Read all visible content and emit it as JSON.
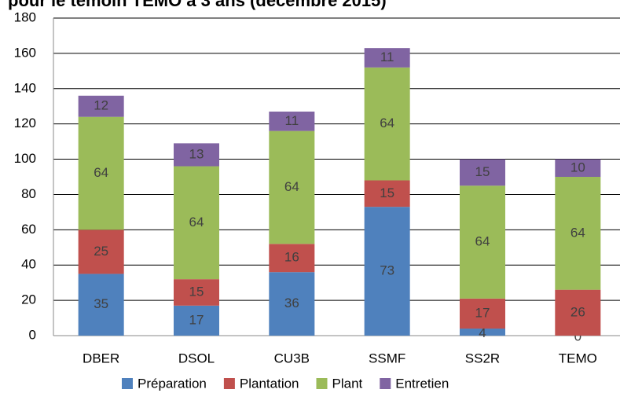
{
  "chart_data": {
    "type": "stacked_bar",
    "title": "pour le témoin TEMO à 3 ans (décembre 2015)",
    "categories": [
      "DBER",
      "DSOL",
      "CU3B",
      "SSMF",
      "SS2R",
      "TEMO"
    ],
    "series": [
      {
        "name": "Préparation",
        "color": "#4f81bd",
        "values": [
          35,
          17,
          36,
          73,
          4,
          0
        ]
      },
      {
        "name": "Plantation",
        "color": "#c0504d",
        "values": [
          25,
          15,
          16,
          15,
          17,
          26
        ]
      },
      {
        "name": "Plant",
        "color": "#9bbb59",
        "values": [
          64,
          64,
          64,
          64,
          64,
          64
        ]
      },
      {
        "name": "Entretien",
        "color": "#8064a2",
        "values": [
          12,
          13,
          11,
          11,
          15,
          10
        ]
      }
    ],
    "ylim": [
      0,
      180
    ],
    "yticks": [
      0,
      20,
      40,
      60,
      80,
      100,
      120,
      140,
      160,
      180
    ],
    "grid": true,
    "legend": "bottom"
  }
}
